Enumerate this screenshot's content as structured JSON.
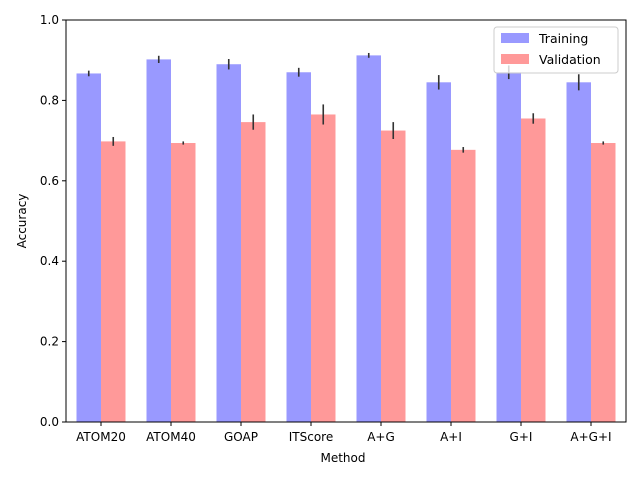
{
  "chart_data": {
    "type": "bar",
    "xlabel": "Method",
    "ylabel": "Accuracy",
    "ylim": [
      0,
      1.0
    ],
    "yticks": [
      "0.0",
      "0.2",
      "0.4",
      "0.6",
      "0.8",
      "1.0"
    ],
    "categories": [
      "ATOM20",
      "ATOM40",
      "GOAP",
      "ITScore",
      "A+G",
      "A+I",
      "G+I",
      "A+G+I"
    ],
    "series": [
      {
        "name": "Training",
        "color": "#9999ff",
        "values": [
          0.867,
          0.902,
          0.89,
          0.87,
          0.912,
          0.845,
          0.87,
          0.845
        ],
        "errors": [
          0.007,
          0.009,
          0.013,
          0.011,
          0.006,
          0.018,
          0.017,
          0.02
        ]
      },
      {
        "name": "Validation",
        "color": "#ff9999",
        "values": [
          0.698,
          0.694,
          0.746,
          0.765,
          0.725,
          0.677,
          0.755,
          0.694
        ],
        "errors": [
          0.011,
          0.004,
          0.019,
          0.025,
          0.021,
          0.007,
          0.013,
          0.004
        ]
      }
    ],
    "legend_position": "top-right",
    "error_bar_color": "#333333"
  }
}
